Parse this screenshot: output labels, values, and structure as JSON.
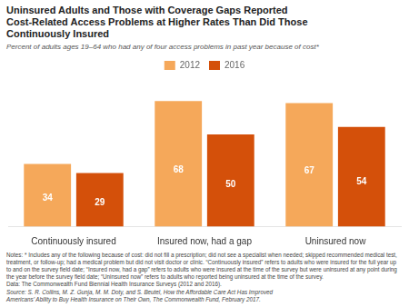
{
  "chart_data": {
    "type": "bar",
    "title": "Uninsured Adults and Those with Coverage Gaps Reported\nCost-Related Access Problems at Higher Rates Than Did Those\nContinuously Insured",
    "subtitle": "Percent of adults ages 19–64 who had any of four access problems in past year because of cost*",
    "annotations": [
      "Notes: * Includes any of the following because of cost: did not fill a prescription; did not see a specialist when needed; skipped recommended medical test,\ntreatment, or follow-up; had a medical problem but did not visit doctor or clinic. “Continuously insured” refers to adults who were insured for the full year up\nto and on the survey field date; “Insured now, had a gap” refers to adults who were insured at the time of the survey but were uninsured at any point during\nthe year before the survey field date; “Uninsured now” refers to adults who reported being uninsured at the time of the survey.\nData: The Commonwealth Fund Biennial Health Insurance Surveys (2012 and 2016).",
      "Source: S. R. Collins, M. Z. Gunja, M. M. Doty, and S. Beutel, How the Affordable Care Act Has Improved\nAmericans’ Ability to Buy Health Insurance on Their Own, The Commonwealth Fund, February 2017."
    ],
    "categories": [
      "Continuously insured",
      "Insured now, had a gap",
      "Uninsured now"
    ],
    "series": [
      {
        "name": "2012",
        "color": "#F5A85A",
        "values": [
          34,
          68,
          67
        ]
      },
      {
        "name": "2016",
        "color": "#D4500A",
        "values": [
          29,
          50,
          54
        ]
      }
    ],
    "ylim": [
      0,
      80
    ],
    "grid": false,
    "legend": "top",
    "data_labels": true,
    "tick_labels": "x"
  }
}
